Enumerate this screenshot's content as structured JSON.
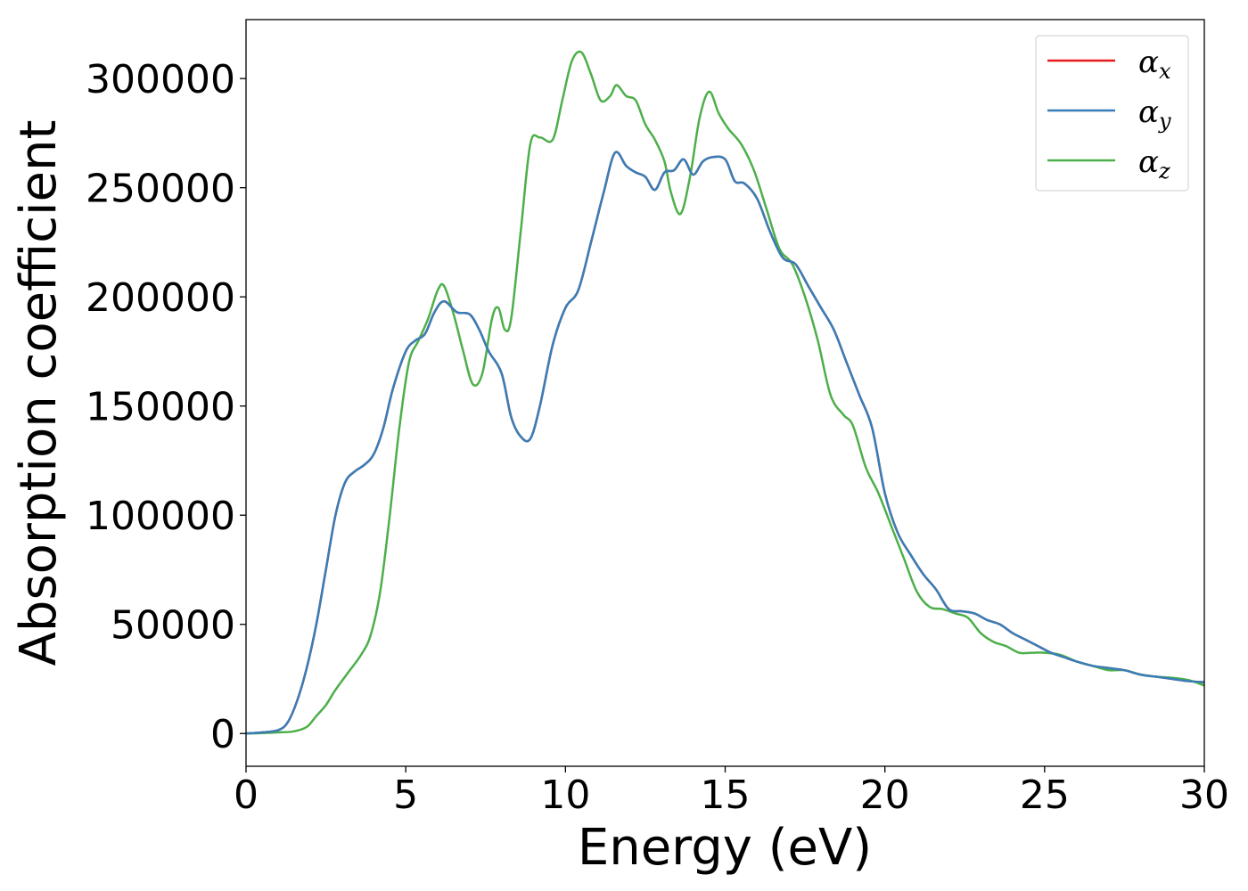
{
  "chart_data": {
    "type": "line",
    "title": "",
    "xlabel": "Energy (eV)",
    "ylabel": "Absorption coefficient",
    "xlim": [
      0,
      30
    ],
    "ylim": [
      -15000,
      327000
    ],
    "xticks": [
      0,
      5,
      10,
      15,
      20,
      25,
      30
    ],
    "xtick_labels": [
      "0",
      "5",
      "10",
      "15",
      "20",
      "25",
      "30"
    ],
    "yticks": [
      0,
      50000,
      100000,
      150000,
      200000,
      250000,
      300000
    ],
    "ytick_labels": [
      "0",
      "50000",
      "100000",
      "150000",
      "200000",
      "250000",
      "300000"
    ],
    "grid": false,
    "legend_position": "top-right",
    "series": [
      {
        "name": "αx",
        "symbol": "α",
        "subscript": "x",
        "color": "#e41a1c",
        "x": [
          0,
          0.5,
          1,
          1.3,
          1.6,
          1.9,
          2.2,
          2.5,
          2.8,
          3.1,
          3.4,
          3.7,
          4,
          4.3,
          4.6,
          5,
          5.3,
          5.6,
          5.9,
          6.2,
          6.6,
          7,
          7.3,
          7.6,
          8,
          8.3,
          8.6,
          8.9,
          9.2,
          9.6,
          10,
          10.4,
          10.8,
          11.2,
          11.55,
          11.9,
          12.2,
          12.5,
          12.8,
          13.1,
          13.4,
          13.7,
          14,
          14.3,
          14.6,
          15,
          15.3,
          15.6,
          16,
          16.4,
          16.8,
          17.2,
          17.6,
          18,
          18.4,
          18.8,
          19.2,
          19.6,
          20,
          20.4,
          20.8,
          21.2,
          21.6,
          22,
          22.4,
          22.8,
          23.2,
          23.6,
          24,
          24.4,
          24.8,
          25.2,
          25.6,
          26,
          26.5,
          27,
          27.5,
          28,
          28.5,
          29,
          29.5,
          30
        ],
        "y": [
          0,
          500,
          1500,
          5000,
          15000,
          30000,
          50000,
          75000,
          100000,
          115000,
          120000,
          123000,
          128000,
          140000,
          158000,
          175000,
          180000,
          183000,
          193000,
          198000,
          193000,
          192000,
          185000,
          175000,
          165000,
          145000,
          136000,
          135000,
          150000,
          178000,
          195000,
          203000,
          225000,
          248000,
          266000,
          260000,
          257000,
          255000,
          249000,
          257000,
          258000,
          263000,
          256000,
          262000,
          264000,
          263000,
          253000,
          252000,
          245000,
          230000,
          218000,
          215000,
          205000,
          195000,
          185000,
          170000,
          155000,
          140000,
          110000,
          92000,
          82000,
          73000,
          66000,
          57000,
          56000,
          55000,
          52000,
          50000,
          46000,
          43000,
          40000,
          37000,
          35000,
          33000,
          31000,
          30000,
          29000,
          27000,
          26000,
          25000,
          24000,
          23500
        ]
      },
      {
        "name": "αy",
        "symbol": "α",
        "subscript": "y",
        "color": "#377eb8",
        "x": [
          0,
          0.5,
          1,
          1.3,
          1.6,
          1.9,
          2.2,
          2.5,
          2.8,
          3.1,
          3.4,
          3.7,
          4,
          4.3,
          4.6,
          5,
          5.3,
          5.6,
          5.9,
          6.2,
          6.6,
          7,
          7.3,
          7.6,
          8,
          8.3,
          8.6,
          8.9,
          9.2,
          9.6,
          10,
          10.4,
          10.8,
          11.2,
          11.55,
          11.9,
          12.2,
          12.5,
          12.8,
          13.1,
          13.4,
          13.7,
          14,
          14.3,
          14.6,
          15,
          15.3,
          15.6,
          16,
          16.4,
          16.8,
          17.2,
          17.6,
          18,
          18.4,
          18.8,
          19.2,
          19.6,
          20,
          20.4,
          20.8,
          21.2,
          21.6,
          22,
          22.4,
          22.8,
          23.2,
          23.6,
          24,
          24.4,
          24.8,
          25.2,
          25.6,
          26,
          26.5,
          27,
          27.5,
          28,
          28.5,
          29,
          29.5,
          30
        ],
        "y": [
          0,
          500,
          1500,
          5000,
          15000,
          30000,
          50000,
          75000,
          100000,
          115000,
          120000,
          123000,
          128000,
          140000,
          158000,
          175000,
          180000,
          183000,
          193000,
          198000,
          193000,
          192000,
          185000,
          175000,
          165000,
          145000,
          136000,
          135000,
          150000,
          178000,
          195000,
          203000,
          225000,
          248000,
          266000,
          260000,
          257000,
          255000,
          249000,
          257000,
          258000,
          263000,
          256000,
          262000,
          264000,
          263000,
          253000,
          252000,
          245000,
          230000,
          218000,
          215000,
          205000,
          195000,
          185000,
          170000,
          155000,
          140000,
          110000,
          92000,
          82000,
          73000,
          66000,
          57000,
          56000,
          55000,
          52000,
          50000,
          46000,
          43000,
          40000,
          37000,
          35000,
          33000,
          31000,
          30000,
          29000,
          27000,
          26000,
          25000,
          24000,
          23500
        ]
      },
      {
        "name": "αz",
        "symbol": "α",
        "subscript": "z",
        "color": "#4daf4a",
        "x": [
          0,
          0.5,
          1,
          1.5,
          1.9,
          2.2,
          2.5,
          2.8,
          3.2,
          3.6,
          3.9,
          4.2,
          4.5,
          4.8,
          5.1,
          5.4,
          5.7,
          6,
          6.2,
          6.5,
          6.8,
          7.1,
          7.4,
          7.7,
          7.9,
          8.1,
          8.3,
          8.6,
          8.9,
          9.2,
          9.6,
          9.9,
          10.2,
          10.5,
          10.8,
          11.1,
          11.4,
          11.6,
          11.9,
          12.2,
          12.5,
          12.8,
          13.1,
          13.3,
          13.6,
          13.9,
          14.2,
          14.5,
          14.8,
          15.1,
          15.5,
          15.9,
          16.3,
          16.7,
          17.1,
          17.5,
          17.9,
          18.3,
          18.7,
          19,
          19.4,
          19.8,
          20.2,
          20.6,
          21,
          21.4,
          21.8,
          22.2,
          22.6,
          23,
          23.4,
          23.8,
          24.2,
          24.6,
          25,
          25.5,
          26,
          26.5,
          27,
          27.5,
          28,
          28.5,
          29,
          29.5,
          30
        ],
        "y": [
          0,
          200,
          500,
          1000,
          3000,
          8000,
          13000,
          20000,
          28000,
          36000,
          45000,
          65000,
          100000,
          140000,
          170000,
          180000,
          190000,
          203000,
          205000,
          192000,
          175000,
          160000,
          165000,
          190000,
          195000,
          185000,
          190000,
          230000,
          270000,
          273000,
          272000,
          290000,
          308000,
          312000,
          302000,
          290000,
          292000,
          297000,
          292000,
          290000,
          279000,
          272000,
          262000,
          248000,
          238000,
          255000,
          282000,
          294000,
          284000,
          277000,
          270000,
          258000,
          240000,
          222000,
          215000,
          200000,
          180000,
          155000,
          146000,
          141000,
          122000,
          110000,
          95000,
          80000,
          65000,
          58000,
          57000,
          55000,
          53000,
          46000,
          42000,
          40000,
          37000,
          37000,
          37000,
          36000,
          33000,
          31000,
          29000,
          29000,
          27000,
          26000,
          25500,
          24500,
          22000
        ]
      }
    ]
  }
}
